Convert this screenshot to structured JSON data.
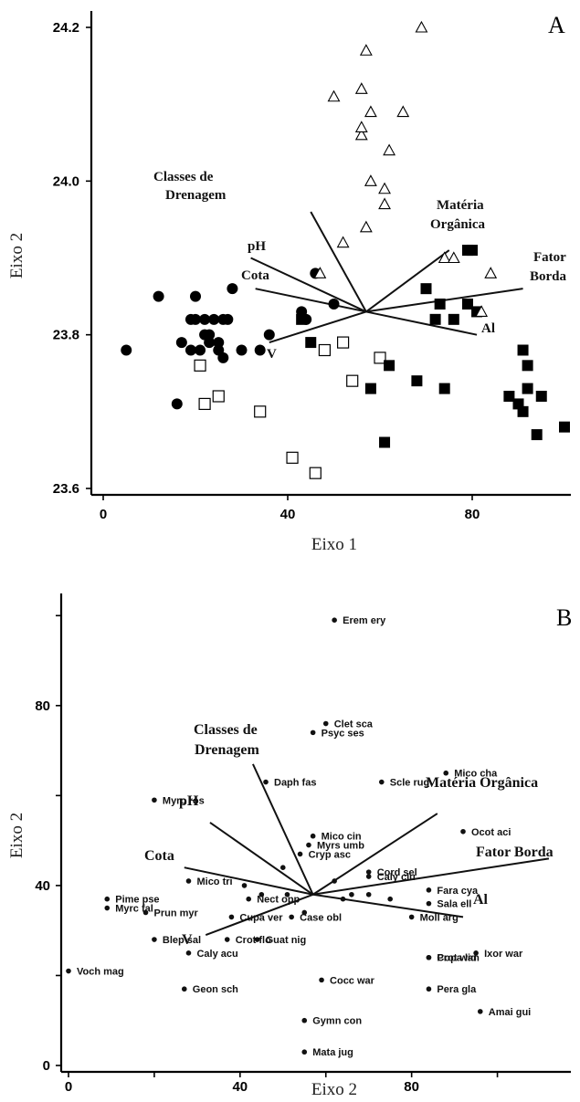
{
  "chart_data": [
    {
      "panel": "A",
      "type": "scatter",
      "xlabel": "Eixo 1",
      "ylabel": "Eixo 2",
      "xlim": [
        0,
        100
      ],
      "ylim": [
        23.6,
        24.2
      ],
      "xticks": [
        "0",
        "40",
        "80"
      ],
      "yticks": [
        "23.6",
        "23.8",
        "24.0",
        "24.2"
      ],
      "series": [
        {
          "marker": "filled-circle",
          "points": [
            [
              5,
              23.78
            ],
            [
              12,
              23.85
            ],
            [
              16,
              23.71
            ],
            [
              17,
              23.79
            ],
            [
              19,
              23.82
            ],
            [
              19,
              23.78
            ],
            [
              20,
              23.85
            ],
            [
              20,
              23.82
            ],
            [
              21,
              23.78
            ],
            [
              22,
              23.8
            ],
            [
              22,
              23.82
            ],
            [
              23,
              23.79
            ],
            [
              23,
              23.8
            ],
            [
              24,
              23.82
            ],
            [
              25,
              23.79
            ],
            [
              25,
              23.78
            ],
            [
              26,
              23.82
            ],
            [
              26,
              23.77
            ],
            [
              27,
              23.82
            ],
            [
              28,
              23.86
            ],
            [
              30,
              23.78
            ],
            [
              34,
              23.78
            ],
            [
              36,
              23.8
            ],
            [
              43,
              23.83
            ],
            [
              44,
              23.82
            ],
            [
              46,
              23.88
            ],
            [
              50,
              23.84
            ]
          ]
        },
        {
          "marker": "open-square",
          "points": [
            [
              21,
              23.76
            ],
            [
              22,
              23.71
            ],
            [
              25,
              23.72
            ],
            [
              34,
              23.7
            ],
            [
              41,
              23.64
            ],
            [
              46,
              23.62
            ],
            [
              48,
              23.78
            ],
            [
              52,
              23.79
            ],
            [
              54,
              23.74
            ],
            [
              60,
              23.77
            ]
          ]
        },
        {
          "marker": "filled-square",
          "points": [
            [
              43,
              23.82
            ],
            [
              45,
              23.79
            ],
            [
              58,
              23.73
            ],
            [
              61,
              23.66
            ],
            [
              62,
              23.76
            ],
            [
              68,
              23.74
            ],
            [
              70,
              23.86
            ],
            [
              72,
              23.82
            ],
            [
              73,
              23.84
            ],
            [
              74,
              23.73
            ],
            [
              76,
              23.82
            ],
            [
              79,
              23.84
            ],
            [
              79,
              23.91
            ],
            [
              80,
              23.91
            ],
            [
              81,
              23.83
            ],
            [
              91,
              23.78
            ],
            [
              92,
              23.76
            ],
            [
              92,
              23.73
            ],
            [
              88,
              23.72
            ],
            [
              90,
              23.71
            ],
            [
              91,
              23.7
            ],
            [
              95,
              23.72
            ],
            [
              94,
              23.67
            ],
            [
              100,
              23.68
            ]
          ]
        },
        {
          "marker": "open-triangle",
          "points": [
            [
              47,
              23.88
            ],
            [
              52,
              23.92
            ],
            [
              50,
              24.11
            ],
            [
              56,
              24.06
            ],
            [
              56,
              24.07
            ],
            [
              57,
              24.17
            ],
            [
              56,
              24.12
            ],
            [
              57,
              23.94
            ],
            [
              58,
              24.09
            ],
            [
              58,
              24.0
            ],
            [
              61,
              23.97
            ],
            [
              61,
              23.99
            ],
            [
              62,
              24.04
            ],
            [
              65,
              24.09
            ],
            [
              69,
              24.2
            ],
            [
              74,
              23.9
            ],
            [
              76,
              23.9
            ],
            [
              82,
              23.83
            ],
            [
              84,
              23.88
            ]
          ]
        }
      ],
      "vectors": [
        {
          "label": "Classes de Drenagem",
          "x": 45,
          "y": 23.96
        },
        {
          "label": "pH",
          "x": 32,
          "y": 23.9
        },
        {
          "label": "Cota",
          "x": 33,
          "y": 23.86
        },
        {
          "label": "V",
          "x": 36,
          "y": 23.79
        },
        {
          "label": "Matéria Orgânica",
          "x": 75,
          "y": 23.91
        },
        {
          "label": "Fator Borda",
          "x": 91,
          "y": 23.86
        },
        {
          "label": "Al",
          "x": 81,
          "y": 23.8
        }
      ],
      "vector_origin": [
        57,
        23.83
      ],
      "vector_labels": [
        "Classes de",
        "Drenagem",
        "pH",
        "Cota",
        "V",
        "Matéria",
        "Orgânica",
        "Fator",
        "Borda",
        "Al"
      ]
    },
    {
      "panel": "B",
      "type": "scatter",
      "xlabel": "Eixo 2",
      "ylabel": "Eixo 2",
      "xlim": [
        0,
        115
      ],
      "ylim": [
        0,
        110
      ],
      "xticks": [
        "0",
        "40",
        "80"
      ],
      "yticks": [
        "0",
        "40",
        "80"
      ],
      "species": [
        {
          "label": "Erem ery",
          "x": 62,
          "y": 99
        },
        {
          "label": "Clet sca",
          "x": 60,
          "y": 76
        },
        {
          "label": "Psyc ses",
          "x": 57,
          "y": 74
        },
        {
          "label": "Daph fas",
          "x": 46,
          "y": 63
        },
        {
          "label": "Scle rug",
          "x": 73,
          "y": 63
        },
        {
          "label": "Mico cha",
          "x": 88,
          "y": 65
        },
        {
          "label": "Myrc ros",
          "x": 20,
          "y": 59
        },
        {
          "label": "Ocot aci",
          "x": 92,
          "y": 52
        },
        {
          "label": "Mico cin",
          "x": 57,
          "y": 51
        },
        {
          "label": "Myrs umb",
          "x": 56,
          "y": 49
        },
        {
          "label": "Cryp asc",
          "x": 54,
          "y": 47
        },
        {
          "label": "Cord sel",
          "x": 70,
          "y": 43
        },
        {
          "label": "Caly clu",
          "x": 70,
          "y": 42
        },
        {
          "label": "Pime pse",
          "x": 9,
          "y": 37
        },
        {
          "label": "Myrc fal",
          "x": 9,
          "y": 35
        },
        {
          "label": "Fara cya",
          "x": 84,
          "y": 39
        },
        {
          "label": "Sala ell",
          "x": 84,
          "y": 36
        },
        {
          "label": "Mico tri",
          "x": 28,
          "y": 41
        },
        {
          "label": "Prun myr",
          "x": 18,
          "y": 34
        },
        {
          "label": "Nect opp",
          "x": 42,
          "y": 37
        },
        {
          "label": "Cupa ver",
          "x": 38,
          "y": 33
        },
        {
          "label": "Case obl",
          "x": 52,
          "y": 33
        },
        {
          "label": "Moll arg",
          "x": 80,
          "y": 33
        },
        {
          "label": "Blep sal",
          "x": 20,
          "y": 28
        },
        {
          "label": "Guat nig",
          "x": 44,
          "y": 28
        },
        {
          "label": "Crot flo",
          "x": 37,
          "y": 28
        },
        {
          "label": "Copa lan",
          "x": 84,
          "y": 24
        },
        {
          "label": "Ixor war",
          "x": 95,
          "y": 25
        },
        {
          "label": "Prot wid",
          "x": 84,
          "y": 24
        },
        {
          "label": "Caly acu",
          "x": 28,
          "y": 25
        },
        {
          "label": "Voch mag",
          "x": 0,
          "y": 21
        },
        {
          "label": "Cocc war",
          "x": 59,
          "y": 19
        },
        {
          "label": "Pera gla",
          "x": 84,
          "y": 17
        },
        {
          "label": "Geon sch",
          "x": 27,
          "y": 17
        },
        {
          "label": "Amai gui",
          "x": 96,
          "y": 12
        },
        {
          "label": "Gymn con",
          "x": 55,
          "y": 10
        },
        {
          "label": "Mata jug",
          "x": 55,
          "y": 3
        }
      ],
      "unlabeled_points": [
        [
          51,
          38
        ],
        [
          45,
          38
        ],
        [
          41,
          40
        ],
        [
          50,
          44
        ],
        [
          62,
          41
        ],
        [
          66,
          38
        ],
        [
          55,
          34
        ],
        [
          64,
          37
        ],
        [
          75,
          37
        ],
        [
          70,
          38
        ]
      ],
      "vectors": [
        {
          "label": "Classes de Drenagem",
          "x": 43,
          "y": 67
        },
        {
          "label": "pH",
          "x": 33,
          "y": 54
        },
        {
          "label": "Cota",
          "x": 27,
          "y": 44
        },
        {
          "label": "V",
          "x": 32,
          "y": 29
        },
        {
          "label": "Matéria Orgânica",
          "x": 86,
          "y": 56
        },
        {
          "label": "Fator Borda",
          "x": 112,
          "y": 46
        },
        {
          "label": "Al",
          "x": 92,
          "y": 33
        }
      ],
      "vector_origin": [
        57,
        38
      ],
      "vector_labels": [
        "Classes de",
        "Drenagem",
        "pH",
        "Cota",
        "V",
        "Matéria Orgânica",
        "Fator Borda",
        "Al"
      ]
    }
  ]
}
